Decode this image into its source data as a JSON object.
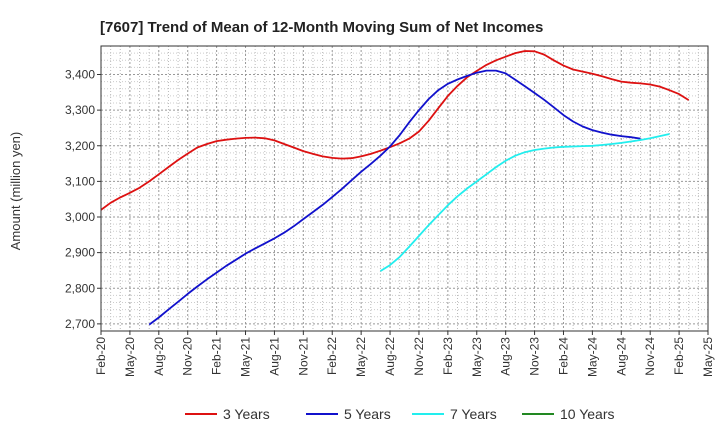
{
  "chart_data": {
    "type": "line",
    "title": "[7607]  Trend of Mean of 12-Month Moving Sum of Net Incomes",
    "xlabel": "",
    "ylabel": "Amount (million yen)",
    "ylim": [
      2680,
      3480
    ],
    "y_ticks": [
      2700,
      2800,
      2900,
      3000,
      3100,
      3200,
      3300,
      3400
    ],
    "y_tick_labels": [
      "2,700",
      "2,800",
      "2,900",
      "3,000",
      "3,100",
      "3,200",
      "3,300",
      "3,400"
    ],
    "x_tick_labels": [
      "Feb-20",
      "May-20",
      "Aug-20",
      "Nov-20",
      "Feb-21",
      "May-21",
      "Aug-21",
      "Nov-21",
      "Feb-22",
      "May-22",
      "Aug-22",
      "Nov-22",
      "Feb-23",
      "May-23",
      "Aug-23",
      "Nov-23",
      "Feb-24",
      "May-24",
      "Aug-24",
      "Nov-24",
      "Feb-25",
      "May-25"
    ],
    "grid": true,
    "legend_position": "bottom",
    "series": [
      {
        "name": "3 Years",
        "color": "#dd1111",
        "start": "Feb-20",
        "values": [
          3020,
          3040,
          3055,
          3068,
          3082,
          3100,
          3120,
          3140,
          3160,
          3178,
          3195,
          3205,
          3213,
          3217,
          3220,
          3222,
          3223,
          3221,
          3215,
          3205,
          3195,
          3185,
          3177,
          3170,
          3166,
          3164,
          3165,
          3170,
          3177,
          3186,
          3196,
          3207,
          3220,
          3240,
          3270,
          3305,
          3340,
          3368,
          3392,
          3410,
          3427,
          3440,
          3450,
          3460,
          3466,
          3465,
          3456,
          3440,
          3425,
          3414,
          3408,
          3402,
          3395,
          3387,
          3380,
          3377,
          3375,
          3372,
          3366,
          3356,
          3345,
          3328
        ]
      },
      {
        "name": "5 Years",
        "color": "#1111cc",
        "start": "Jul-20",
        "values": [
          2698,
          2718,
          2740,
          2762,
          2784,
          2805,
          2825,
          2844,
          2863,
          2880,
          2897,
          2912,
          2926,
          2940,
          2956,
          2974,
          2994,
          3014,
          3034,
          3056,
          3079,
          3103,
          3127,
          3149,
          3172,
          3198,
          3230,
          3266,
          3300,
          3331,
          3356,
          3374,
          3386,
          3396,
          3405,
          3411,
          3411,
          3403,
          3385,
          3367,
          3348,
          3329,
          3308,
          3286,
          3268,
          3254,
          3244,
          3237,
          3231,
          3227,
          3224,
          3220
        ]
      },
      {
        "name": "7 Years",
        "color": "#22eeee",
        "start": "Jul-22",
        "values": [
          2848,
          2865,
          2888,
          2917,
          2947,
          2977,
          3005,
          3033,
          3058,
          3080,
          3100,
          3120,
          3140,
          3158,
          3172,
          3182,
          3188,
          3192,
          3195,
          3197,
          3198,
          3199,
          3200,
          3202,
          3205,
          3208,
          3212,
          3216,
          3221,
          3227,
          3233
        ]
      },
      {
        "name": "10 Years",
        "color": "#228822",
        "start": "Feb-20",
        "values": []
      }
    ]
  }
}
